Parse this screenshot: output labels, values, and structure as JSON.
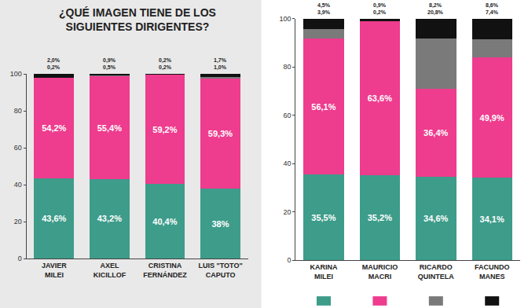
{
  "chart_data": [
    {
      "type": "bar",
      "title": "¿QUÉ IMAGEN TIENE DE LOS SIGUIENTES DIRIGENTES?",
      "categories": [
        "JAVIER MILEI",
        "AXEL KICILLOF",
        "CRISTINA FERNÁNDEZ",
        "LUIS \"TOTO\" CAPUTO"
      ],
      "stacked": true,
      "data_labels": true,
      "ylim": [
        0,
        100
      ],
      "yticks": [
        0,
        20,
        40,
        60,
        80,
        100
      ],
      "series": [
        {
          "color": "#3d9c8a",
          "values": [
            43.6,
            43.2,
            40.4,
            38
          ],
          "value_labels": [
            "43,6%",
            "43,2%",
            "40,4%",
            "38%"
          ]
        },
        {
          "color": "#ee3c8e",
          "values": [
            54.2,
            55.4,
            59.2,
            59.3
          ],
          "value_labels": [
            "54,2%",
            "55,4%",
            "59,2%",
            "59,3%"
          ]
        },
        {
          "color": "#7a7a7a",
          "values": [
            0.2,
            0.5,
            0.2,
            1.0
          ],
          "value_labels": [
            "0,2%",
            "0,5%",
            "0,2%",
            "1,0%"
          ]
        },
        {
          "color": "#111111",
          "values": [
            2.0,
            0.9,
            0.2,
            1.7
          ],
          "value_labels": [
            "2,0%",
            "0,9%",
            "0,2%",
            "1,7%"
          ]
        }
      ]
    },
    {
      "type": "bar",
      "categories": [
        "KARINA MILEI",
        "MAURICIO MACRI",
        "RICARDO QUINTELA",
        "FACUNDO MANES"
      ],
      "stacked": true,
      "data_labels": true,
      "ylim": [
        0,
        100
      ],
      "yticks": [
        0,
        20,
        40,
        60,
        80,
        100
      ],
      "series": [
        {
          "color": "#3d9c8a",
          "values": [
            35.5,
            35.2,
            34.6,
            34.1
          ],
          "value_labels": [
            "35,5%",
            "35,2%",
            "34,6%",
            "34,1%"
          ]
        },
        {
          "color": "#ee3c8e",
          "values": [
            56.1,
            63.6,
            36.4,
            49.9
          ],
          "value_labels": [
            "56,1%",
            "63,6%",
            "36,4%",
            "49,9%"
          ]
        },
        {
          "color": "#7a7a7a",
          "values": [
            3.9,
            0.2,
            20.8,
            7.4
          ],
          "value_labels": [
            "3,9%",
            "0,2%",
            "20,8%",
            "7,4%"
          ]
        },
        {
          "color": "#111111",
          "values": [
            4.5,
            0.9,
            8.2,
            8.6
          ],
          "value_labels": [
            "4,5%",
            "0,9%",
            "8,2%",
            "8,6%"
          ]
        }
      ]
    }
  ]
}
